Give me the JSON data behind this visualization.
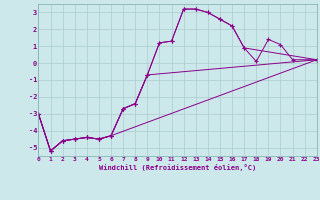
{
  "xlabel": "Windchill (Refroidissement éolien,°C)",
  "bg_color": "#cce8ea",
  "line_color": "#8b008b",
  "grid_color": "#aacccc",
  "xlim": [
    0,
    23
  ],
  "ylim": [
    -5.5,
    3.5
  ],
  "yticks": [
    -5,
    -4,
    -3,
    -2,
    -1,
    0,
    1,
    2,
    3
  ],
  "xticks": [
    0,
    1,
    2,
    3,
    4,
    5,
    6,
    7,
    8,
    9,
    10,
    11,
    12,
    13,
    14,
    15,
    16,
    17,
    18,
    19,
    20,
    21,
    22,
    23
  ],
  "series": [
    {
      "x": [
        0,
        1,
        2,
        3,
        4,
        5,
        6,
        7,
        8,
        9,
        10,
        11,
        12,
        13,
        14,
        15,
        16,
        17,
        18,
        19,
        20,
        21,
        23
      ],
      "y": [
        -3.0,
        -5.2,
        -4.6,
        -4.5,
        -4.4,
        -4.5,
        -4.3,
        -2.7,
        -2.4,
        -0.7,
        1.2,
        1.3,
        3.2,
        3.2,
        3.0,
        2.6,
        2.2,
        0.9,
        0.1,
        1.4,
        1.1,
        0.2,
        0.2
      ]
    },
    {
      "x": [
        0,
        1,
        2,
        3,
        4,
        5,
        6,
        7,
        8,
        9,
        23
      ],
      "y": [
        -3.0,
        -5.2,
        -4.6,
        -4.5,
        -4.4,
        -4.5,
        -4.3,
        -2.7,
        -2.4,
        -0.7,
        0.2
      ]
    },
    {
      "x": [
        0,
        1,
        2,
        3,
        4,
        5,
        6,
        23
      ],
      "y": [
        -3.0,
        -5.2,
        -4.6,
        -4.5,
        -4.4,
        -4.5,
        -4.3,
        0.2
      ]
    },
    {
      "x": [
        0,
        1,
        2,
        3,
        4,
        5,
        6,
        7,
        8,
        9,
        10,
        11,
        12,
        13,
        14,
        15,
        16,
        17,
        23
      ],
      "y": [
        -3.0,
        -5.2,
        -4.6,
        -4.5,
        -4.4,
        -4.5,
        -4.3,
        -2.7,
        -2.4,
        -0.7,
        1.2,
        1.3,
        3.2,
        3.2,
        3.0,
        2.6,
        2.2,
        0.9,
        0.2
      ]
    }
  ]
}
